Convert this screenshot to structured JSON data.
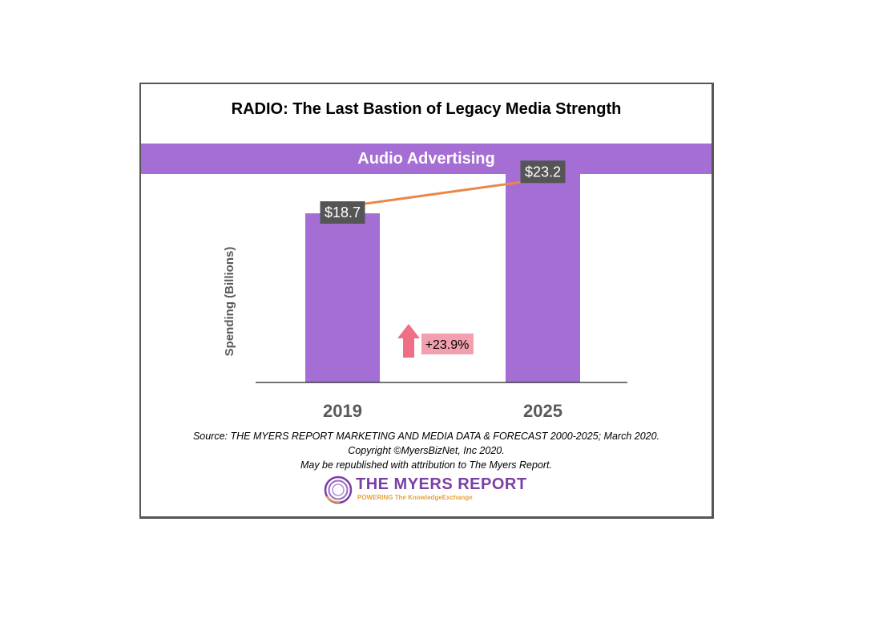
{
  "title": "RADIO: The Last Bastion of Legacy Media Strength",
  "band_label": "Audio Advertising",
  "chart_data": {
    "type": "bar",
    "categories": [
      "2019",
      "2025"
    ],
    "values": [
      18.7,
      23.2
    ],
    "value_labels": [
      "$18.7",
      "$23.2"
    ],
    "ylabel": "Spending (Billions)",
    "ylim": [
      0,
      25
    ],
    "trend_line": true,
    "change_label": "+23.9%",
    "grid": false,
    "colors": {
      "bar": "#a56ed4",
      "trend": "#e8894a",
      "label_bg": "#555555",
      "change_bg": "#f2a0b0",
      "arrow": "#ee6f86"
    }
  },
  "source": {
    "line1": "Source: THE MYERS REPORT MARKETING AND MEDIA DATA & FORECAST 2000-2025; March 2020.",
    "line2": "Copyright ©MyersBizNet, Inc 2020.",
    "line3": "May be republished with attribution to The Myers Report."
  },
  "logo": {
    "name": "THE MYERS REPORT",
    "tagline": "POWERING The KnowledgeExchange",
    "icon": "myers-swirl-icon"
  }
}
